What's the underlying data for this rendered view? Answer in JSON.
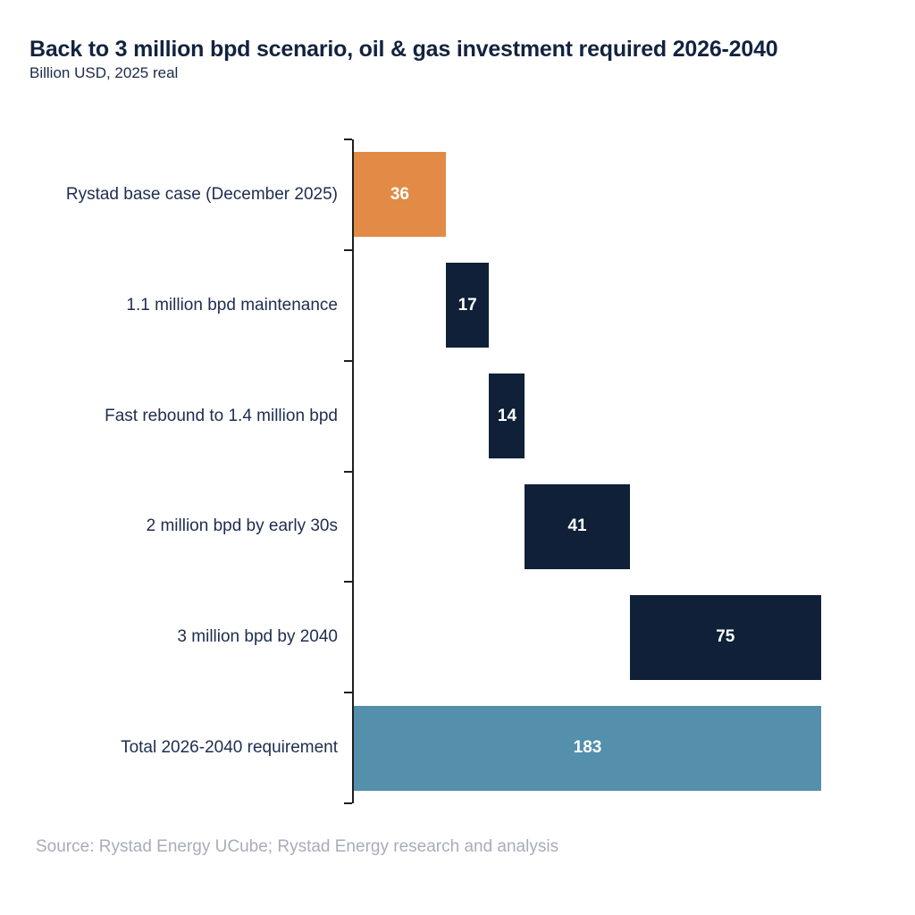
{
  "header": {
    "title": "Back to 3 million bpd scenario, oil & gas investment required 2026-2040",
    "subtitle": "Billion USD, 2025 real"
  },
  "chart_data": {
    "type": "bar",
    "variant": "horizontal-waterfall",
    "title": "Back to 3 million bpd scenario, oil & gas investment required 2026-2040",
    "subtitle": "Billion USD, 2025 real",
    "unit": "Billion USD, 2025 real",
    "xlim": [
      0,
      183
    ],
    "grid": false,
    "legend": "none",
    "categories": [
      "Rystad base case (December 2025)",
      "1.1 million bpd maintenance",
      "Fast rebound to 1.4 million bpd",
      "2 million bpd by early 30s",
      "3 million bpd by 2040",
      "Total 2026-2040 requirement"
    ],
    "values": [
      36,
      17,
      14,
      41,
      75,
      183
    ],
    "bars": [
      {
        "label": "Rystad base case (December 2025)",
        "value": 36,
        "start": 0,
        "color": "#E18B46"
      },
      {
        "label": "1.1 million bpd maintenance",
        "value": 17,
        "start": 36,
        "color": "#0F2038"
      },
      {
        "label": "Fast rebound to 1.4 million bpd",
        "value": 14,
        "start": 53,
        "color": "#0F2038"
      },
      {
        "label": "2 million bpd by early 30s",
        "value": 41,
        "start": 67,
        "color": "#0F2038"
      },
      {
        "label": "3 million bpd by 2040",
        "value": 75,
        "start": 108,
        "color": "#0F2038"
      },
      {
        "label": "Total 2026-2040 requirement",
        "value": 183,
        "start": 0,
        "color": "#548FAB"
      }
    ],
    "colors": {
      "base_case": "#E18B46",
      "increment": "#0F2038",
      "total": "#548FAB",
      "axis": "#1F1F1F",
      "label_text": "#1E2D4F",
      "value_text": "#FFFFFF"
    }
  },
  "footer": {
    "source": "Source: Rystad Energy UCube; Rystad Energy research and analysis"
  }
}
